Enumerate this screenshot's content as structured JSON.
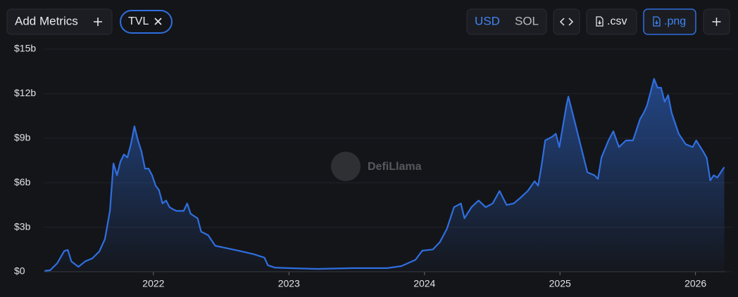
{
  "ui": {
    "add_metrics": "Add Metrics",
    "currencies": [
      "USD",
      "SOL"
    ],
    "csv": ".csv",
    "png": ".png",
    "watermark": "DefiLlama"
  },
  "chart_data": {
    "type": "area",
    "x": [
      2021.197,
      2021.238,
      2021.29,
      2021.342,
      2021.368,
      2021.394,
      2021.446,
      2021.497,
      2021.549,
      2021.601,
      2021.642,
      2021.679,
      2021.705,
      2021.731,
      2021.756,
      2021.782,
      2021.808,
      2021.834,
      2021.86,
      2021.886,
      2021.912,
      2021.938,
      2021.964,
      2021.99,
      2022.016,
      2022.041,
      2022.067,
      2022.093,
      2022.119,
      2022.145,
      2022.171,
      2022.197,
      2022.223,
      2022.249,
      2022.275,
      2022.326,
      2022.352,
      2022.404,
      2022.456,
      2022.534,
      2022.637,
      2022.741,
      2022.819,
      2022.845,
      2022.896,
      2023.0,
      2023.207,
      2023.466,
      2023.725,
      2023.829,
      2023.933,
      2023.984,
      2024.062,
      2024.114,
      2024.166,
      2024.218,
      2024.269,
      2024.295,
      2024.347,
      2024.399,
      2024.451,
      2024.503,
      2024.554,
      2024.606,
      2024.658,
      2024.71,
      2024.762,
      2024.813,
      2024.839,
      2024.865,
      2024.891,
      2024.943,
      2024.969,
      2024.995,
      2025.021,
      2025.047,
      2025.062,
      2025.098,
      2025.15,
      2025.202,
      2025.254,
      2025.28,
      2025.306,
      2025.358,
      2025.394,
      2025.435,
      2025.487,
      2025.539,
      2025.591,
      2025.617,
      2025.642,
      2025.694,
      2025.72,
      2025.746,
      2025.772,
      2025.798,
      2025.824,
      2025.876,
      2025.927,
      2025.979,
      2026.005,
      2026.057,
      2026.083,
      2026.109,
      2026.135,
      2026.161,
      2026.187,
      2026.212
    ],
    "series": [
      {
        "name": "TVL",
        "color": "#2f6fe0",
        "values": [
          0.05,
          0.1,
          0.57,
          1.4,
          1.47,
          0.7,
          0.33,
          0.7,
          0.9,
          1.37,
          2.2,
          4.1,
          7.3,
          6.5,
          7.4,
          7.9,
          7.7,
          8.6,
          9.8,
          8.85,
          8.1,
          6.95,
          6.95,
          6.5,
          5.8,
          5.5,
          4.6,
          4.8,
          4.35,
          4.2,
          4.1,
          4.1,
          4.1,
          4.6,
          3.9,
          3.6,
          2.7,
          2.46,
          1.75,
          1.6,
          1.4,
          1.18,
          0.95,
          0.43,
          0.28,
          0.24,
          0.19,
          0.24,
          0.24,
          0.38,
          0.8,
          1.42,
          1.5,
          2.0,
          2.9,
          4.35,
          4.6,
          3.6,
          4.35,
          4.8,
          4.35,
          4.6,
          5.44,
          4.5,
          4.6,
          5.0,
          5.44,
          6.1,
          5.8,
          7.2,
          8.85,
          9.1,
          9.3,
          8.4,
          9.8,
          11.2,
          11.8,
          10.5,
          8.6,
          6.7,
          6.5,
          6.25,
          7.7,
          8.85,
          9.47,
          8.4,
          8.85,
          8.85,
          10.3,
          10.7,
          11.2,
          13.0,
          12.4,
          12.4,
          11.45,
          11.9,
          10.7,
          9.3,
          8.6,
          8.4,
          8.85,
          8.1,
          7.67,
          6.15,
          6.5,
          6.34,
          6.7,
          7.05
        ]
      }
    ],
    "xlim": [
      2021.19,
      2026.22
    ],
    "xticks": [
      2022,
      2023,
      2024,
      2025,
      2026
    ],
    "ylim": [
      0,
      15
    ],
    "yticks": [
      {
        "value": 0,
        "label": "$0"
      },
      {
        "value": 3,
        "label": "$3b"
      },
      {
        "value": 6,
        "label": "$6b"
      },
      {
        "value": 9,
        "label": "$9b"
      },
      {
        "value": 12,
        "label": "$12b"
      },
      {
        "value": 15,
        "label": "$15b"
      }
    ],
    "grid": true
  }
}
